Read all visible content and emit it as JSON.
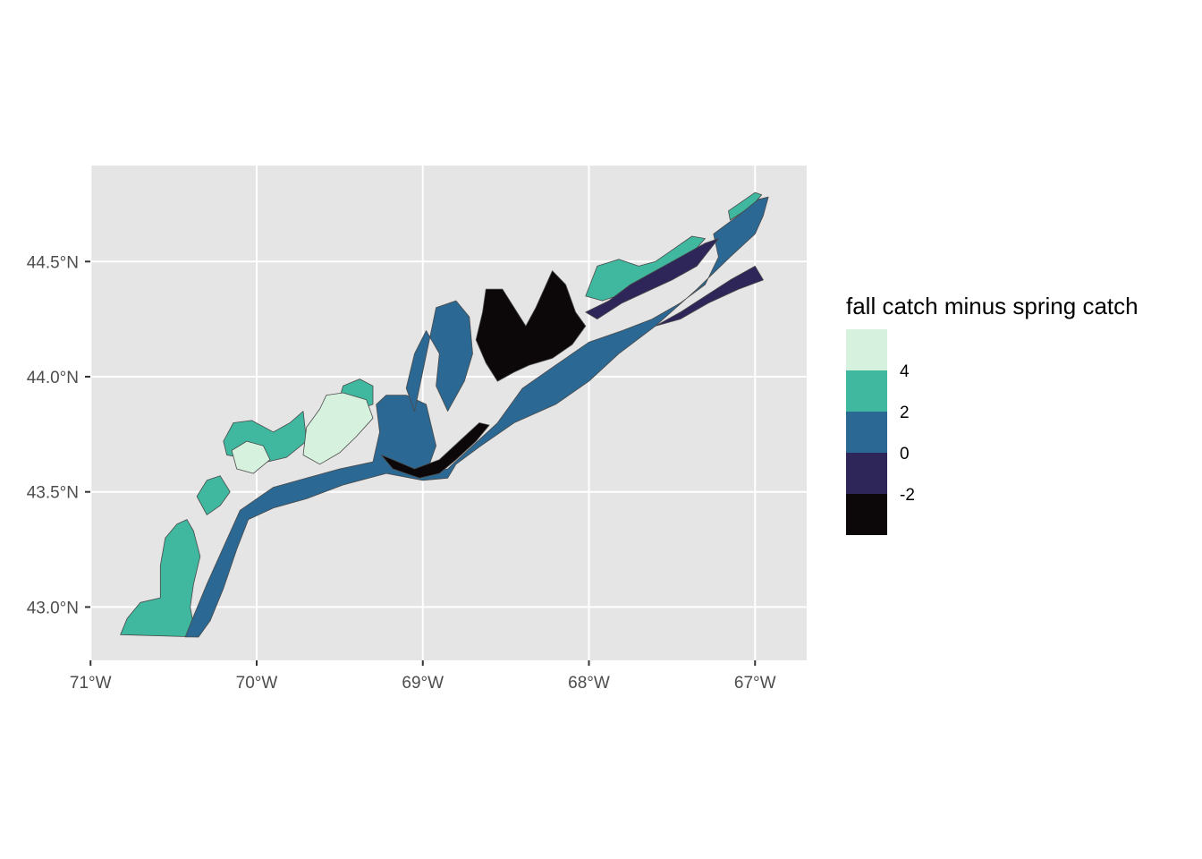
{
  "chart_data": {
    "type": "map",
    "title": "",
    "xlabel": "",
    "ylabel": "",
    "xlim": [
      -71.0,
      -66.7
    ],
    "ylim": [
      42.78,
      44.92
    ],
    "grid": true,
    "x_ticks": [
      {
        "value": -71,
        "label": "71°W"
      },
      {
        "value": -70,
        "label": "70°W"
      },
      {
        "value": -69,
        "label": "69°W"
      },
      {
        "value": -68,
        "label": "68°W"
      },
      {
        "value": -67,
        "label": "67°W"
      }
    ],
    "y_ticks": [
      {
        "value": 43.0,
        "label": "43.0°N"
      },
      {
        "value": 43.5,
        "label": "43.5°N"
      },
      {
        "value": 44.0,
        "label": "44.0°N"
      },
      {
        "value": 44.5,
        "label": "44.5°N"
      }
    ],
    "legend": {
      "title": "fall catch minus spring catch",
      "placement": "right",
      "bins": [
        {
          "color": "#d6f2df",
          "label": ""
        },
        {
          "color": "#3fb89f",
          "label": "4"
        },
        {
          "color": "#2b6893",
          "label": "2"
        },
        {
          "color": "#2e2659",
          "label": "0"
        },
        {
          "color": "#0c0708",
          "label": "-2"
        }
      ]
    },
    "regions": [
      {
        "class": 1,
        "color": "#3fb89f",
        "coords": [
          [
            -70.82,
            42.88
          ],
          [
            -70.78,
            42.95
          ],
          [
            -70.7,
            43.02
          ],
          [
            -70.58,
            43.04
          ],
          [
            -70.58,
            43.18
          ],
          [
            -70.55,
            43.3
          ],
          [
            -70.48,
            43.36
          ],
          [
            -70.42,
            43.38
          ],
          [
            -70.38,
            43.33
          ],
          [
            -70.34,
            43.22
          ],
          [
            -70.38,
            43.1
          ],
          [
            -70.4,
            43.0
          ],
          [
            -70.38,
            42.92
          ],
          [
            -70.35,
            42.9
          ],
          [
            -70.35,
            42.87
          ]
        ]
      },
      {
        "class": 1,
        "color": "#3fb89f",
        "coords": [
          [
            -70.36,
            43.48
          ],
          [
            -70.3,
            43.55
          ],
          [
            -70.22,
            43.57
          ],
          [
            -70.16,
            43.5
          ],
          [
            -70.22,
            43.44
          ],
          [
            -70.3,
            43.4
          ]
        ]
      },
      {
        "class": 1,
        "color": "#3fb89f",
        "coords": [
          [
            -70.2,
            43.72
          ],
          [
            -70.14,
            43.8
          ],
          [
            -70.03,
            43.81
          ],
          [
            -69.9,
            43.76
          ],
          [
            -69.8,
            43.8
          ],
          [
            -69.72,
            43.85
          ],
          [
            -69.7,
            43.72
          ],
          [
            -69.82,
            43.65
          ],
          [
            -70.0,
            43.62
          ],
          [
            -70.1,
            43.65
          ],
          [
            -70.18,
            43.66
          ]
        ]
      },
      {
        "class": 1,
        "color": "#3fb89f",
        "coords": [
          [
            -69.52,
            43.86
          ],
          [
            -69.48,
            43.96
          ],
          [
            -69.38,
            43.99
          ],
          [
            -69.3,
            43.96
          ],
          [
            -69.3,
            43.88
          ],
          [
            -69.42,
            43.85
          ]
        ]
      },
      {
        "class": 1,
        "color": "#3fb89f",
        "coords": [
          [
            -68.02,
            44.35
          ],
          [
            -67.95,
            44.48
          ],
          [
            -67.82,
            44.51
          ],
          [
            -67.7,
            44.48
          ],
          [
            -67.6,
            44.5
          ],
          [
            -67.48,
            44.56
          ],
          [
            -67.38,
            44.61
          ],
          [
            -67.3,
            44.6
          ],
          [
            -67.4,
            44.52
          ],
          [
            -67.55,
            44.43
          ],
          [
            -67.75,
            44.37
          ],
          [
            -67.92,
            44.33
          ]
        ]
      },
      {
        "class": 1,
        "color": "#3fb89f",
        "coords": [
          [
            -67.15,
            44.68
          ],
          [
            -67.02,
            44.74
          ],
          [
            -66.96,
            44.79
          ],
          [
            -67.0,
            44.8
          ],
          [
            -67.08,
            44.76
          ],
          [
            -67.16,
            44.72
          ]
        ]
      },
      {
        "class": 0,
        "color": "#d6f2df",
        "coords": [
          [
            -69.62,
            43.86
          ],
          [
            -69.58,
            43.92
          ],
          [
            -69.48,
            43.93
          ],
          [
            -69.34,
            43.9
          ],
          [
            -69.3,
            43.82
          ],
          [
            -69.4,
            43.74
          ],
          [
            -69.5,
            43.67
          ],
          [
            -69.62,
            43.62
          ],
          [
            -69.72,
            43.66
          ],
          [
            -69.7,
            43.78
          ]
        ]
      },
      {
        "class": 0,
        "color": "#d6f2df",
        "coords": [
          [
            -70.15,
            43.68
          ],
          [
            -70.06,
            43.72
          ],
          [
            -69.96,
            43.7
          ],
          [
            -69.92,
            43.64
          ],
          [
            -70.02,
            43.58
          ],
          [
            -70.12,
            43.6
          ]
        ]
      },
      {
        "class": 2,
        "color": "#2b6893",
        "coords": [
          [
            -70.43,
            42.87
          ],
          [
            -70.38,
            42.96
          ],
          [
            -70.3,
            43.1
          ],
          [
            -70.2,
            43.26
          ],
          [
            -70.1,
            43.42
          ],
          [
            -69.9,
            43.52
          ],
          [
            -69.7,
            43.56
          ],
          [
            -69.5,
            43.6
          ],
          [
            -69.3,
            43.63
          ],
          [
            -69.26,
            43.76
          ],
          [
            -69.28,
            43.88
          ],
          [
            -69.22,
            43.92
          ],
          [
            -69.1,
            43.92
          ],
          [
            -68.98,
            43.88
          ],
          [
            -68.92,
            43.7
          ],
          [
            -68.98,
            43.58
          ],
          [
            -68.85,
            43.6
          ],
          [
            -68.7,
            43.7
          ],
          [
            -68.55,
            43.8
          ],
          [
            -68.4,
            43.95
          ],
          [
            -68.2,
            44.05
          ],
          [
            -68.0,
            44.15
          ],
          [
            -67.8,
            44.2
          ],
          [
            -67.62,
            44.25
          ],
          [
            -67.45,
            44.32
          ],
          [
            -67.3,
            44.4
          ],
          [
            -67.22,
            44.52
          ],
          [
            -67.25,
            44.62
          ],
          [
            -67.1,
            44.7
          ],
          [
            -66.98,
            44.77
          ],
          [
            -66.92,
            44.78
          ],
          [
            -66.95,
            44.7
          ],
          [
            -67.0,
            44.62
          ],
          [
            -67.15,
            44.52
          ],
          [
            -67.35,
            44.38
          ],
          [
            -67.6,
            44.22
          ],
          [
            -67.82,
            44.1
          ],
          [
            -68.0,
            43.98
          ],
          [
            -68.2,
            43.88
          ],
          [
            -68.45,
            43.8
          ],
          [
            -68.65,
            43.7
          ],
          [
            -68.8,
            43.62
          ],
          [
            -68.85,
            43.56
          ],
          [
            -69.0,
            43.55
          ],
          [
            -69.22,
            43.58
          ],
          [
            -69.48,
            43.53
          ],
          [
            -69.7,
            43.47
          ],
          [
            -69.9,
            43.43
          ],
          [
            -70.05,
            43.38
          ],
          [
            -70.12,
            43.25
          ],
          [
            -70.2,
            43.08
          ],
          [
            -70.28,
            42.94
          ],
          [
            -70.35,
            42.87
          ]
        ]
      },
      {
        "class": 2,
        "color": "#2b6893",
        "coords": [
          [
            -68.92,
            44.3
          ],
          [
            -68.8,
            44.33
          ],
          [
            -68.72,
            44.26
          ],
          [
            -68.7,
            44.1
          ],
          [
            -68.75,
            43.98
          ],
          [
            -68.85,
            43.85
          ],
          [
            -68.92,
            43.96
          ],
          [
            -68.9,
            44.1
          ],
          [
            -68.98,
            44.2
          ],
          [
            -69.05,
            44.1
          ],
          [
            -69.1,
            43.95
          ],
          [
            -69.05,
            43.85
          ]
        ]
      },
      {
        "class": 3,
        "color": "#2e2659",
        "coords": [
          [
            -68.02,
            44.28
          ],
          [
            -67.88,
            44.33
          ],
          [
            -67.75,
            44.4
          ],
          [
            -67.6,
            44.46
          ],
          [
            -67.45,
            44.52
          ],
          [
            -67.3,
            44.58
          ],
          [
            -67.22,
            44.6
          ],
          [
            -67.35,
            44.48
          ],
          [
            -67.5,
            44.42
          ],
          [
            -67.65,
            44.37
          ],
          [
            -67.8,
            44.32
          ],
          [
            -67.95,
            44.25
          ]
        ]
      },
      {
        "class": 3,
        "color": "#2e2659",
        "coords": [
          [
            -67.6,
            44.22
          ],
          [
            -67.45,
            44.28
          ],
          [
            -67.3,
            44.35
          ],
          [
            -67.15,
            44.42
          ],
          [
            -67.0,
            44.48
          ],
          [
            -66.95,
            44.42
          ],
          [
            -67.1,
            44.38
          ],
          [
            -67.28,
            44.32
          ],
          [
            -67.45,
            44.25
          ]
        ]
      },
      {
        "class": 4,
        "color": "#0c0708",
        "coords": [
          [
            -69.25,
            43.66
          ],
          [
            -69.18,
            43.6
          ],
          [
            -69.02,
            43.56
          ],
          [
            -68.9,
            43.58
          ],
          [
            -68.8,
            43.64
          ],
          [
            -68.68,
            43.72
          ],
          [
            -68.6,
            43.79
          ],
          [
            -68.66,
            43.8
          ],
          [
            -68.78,
            43.72
          ],
          [
            -68.9,
            43.64
          ],
          [
            -69.05,
            43.6
          ],
          [
            -69.18,
            43.64
          ]
        ]
      },
      {
        "class": 4,
        "color": "#0c0708",
        "coords": [
          [
            -68.62,
            44.38
          ],
          [
            -68.52,
            44.38
          ],
          [
            -68.45,
            44.3
          ],
          [
            -68.38,
            44.22
          ],
          [
            -68.32,
            44.3
          ],
          [
            -68.22,
            44.46
          ],
          [
            -68.14,
            44.4
          ],
          [
            -68.08,
            44.28
          ],
          [
            -68.02,
            44.22
          ],
          [
            -68.1,
            44.14
          ],
          [
            -68.22,
            44.08
          ],
          [
            -68.36,
            44.05
          ],
          [
            -68.45,
            44.02
          ],
          [
            -68.55,
            43.98
          ],
          [
            -68.62,
            44.06
          ],
          [
            -68.68,
            44.16
          ],
          [
            -68.64,
            44.28
          ]
        ]
      }
    ]
  }
}
